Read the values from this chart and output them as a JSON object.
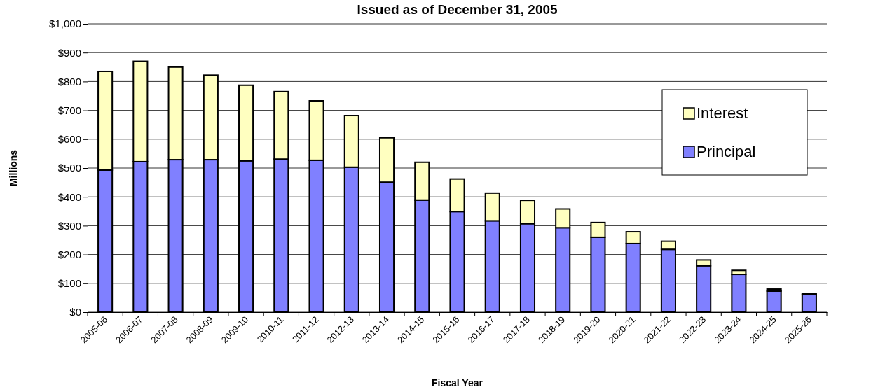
{
  "chart_data": {
    "type": "bar",
    "title": "Issued as of December 31, 2005",
    "xlabel": "Fiscal Year",
    "ylabel": "Millions",
    "categories": [
      "2005-06",
      "2006-07",
      "2007-08",
      "2008-09",
      "2009-10",
      "2010-11",
      "2011-12",
      "2012-13",
      "2013-14",
      "2014-15",
      "2015-16",
      "2016-17",
      "2017-18",
      "2018-19",
      "2019-20",
      "2020-21",
      "2021-22",
      "2022-23",
      "2023-24",
      "2024-25",
      "2025-26"
    ],
    "series": [
      {
        "name": "Principal",
        "color": "#8080ff",
        "values": [
          493,
          522,
          529,
          529,
          525,
          531,
          527,
          503,
          451,
          389,
          349,
          317,
          307,
          293,
          260,
          238,
          218,
          161,
          131,
          73,
          61
        ]
      },
      {
        "name": "Interest",
        "color": "#ffffc0",
        "values": [
          342,
          348,
          321,
          293,
          262,
          234,
          206,
          179,
          154,
          131,
          113,
          96,
          81,
          65,
          51,
          41,
          28,
          20,
          14,
          7,
          3
        ]
      }
    ],
    "stacked": true,
    "ylim": [
      0,
      1000
    ],
    "yticks": [
      {
        "value": 0,
        "label": "$0"
      },
      {
        "value": 100,
        "label": "$100"
      },
      {
        "value": 200,
        "label": "$200"
      },
      {
        "value": 300,
        "label": "$300"
      },
      {
        "value": 400,
        "label": "$400"
      },
      {
        "value": 500,
        "label": "$500"
      },
      {
        "value": 600,
        "label": "$600"
      },
      {
        "value": 700,
        "label": "$700"
      },
      {
        "value": 800,
        "label": "$800"
      },
      {
        "value": 900,
        "label": "$900"
      },
      {
        "value": 1000,
        "label": "$1,000"
      }
    ],
    "grid": "y",
    "legend": "right"
  }
}
